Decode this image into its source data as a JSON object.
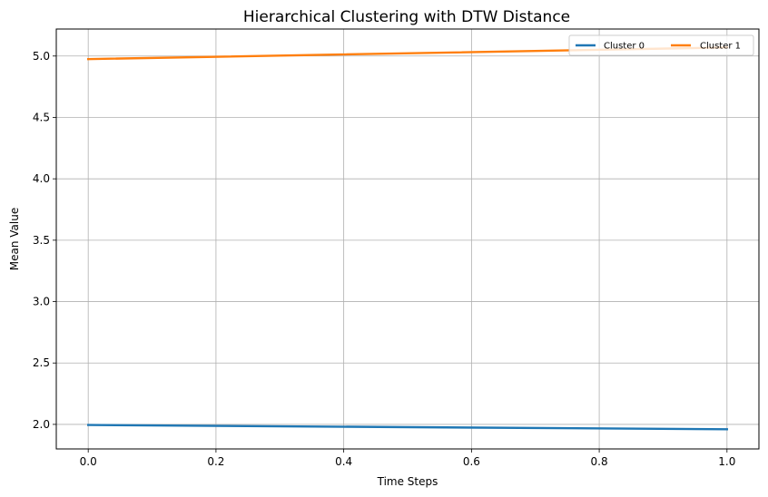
{
  "chart_data": {
    "type": "line",
    "title": "Hierarchical Clustering with DTW Distance",
    "xlabel": "Time Steps",
    "ylabel": "Mean Value",
    "xlim": [
      -0.05,
      1.05
    ],
    "ylim": [
      1.8,
      5.22
    ],
    "x_ticks": [
      0.0,
      0.2,
      0.4,
      0.6,
      0.8,
      1.0
    ],
    "x_tick_labels": [
      "0.0",
      "0.2",
      "0.4",
      "0.6",
      "0.8",
      "1.0"
    ],
    "y_ticks": [
      2.0,
      2.5,
      3.0,
      3.5,
      4.0,
      4.5,
      5.0
    ],
    "y_tick_labels": [
      "2.0",
      "2.5",
      "3.0",
      "3.5",
      "4.0",
      "4.5",
      "5.0"
    ],
    "grid": true,
    "legend_position": "top-right",
    "x": [
      0.0,
      1.0
    ],
    "series": [
      {
        "name": "Cluster 0",
        "color": "#1f77b4",
        "values": [
          1.995,
          1.96
        ]
      },
      {
        "name": "Cluster 1",
        "color": "#ff7f0e",
        "values": [
          4.975,
          5.07
        ]
      }
    ]
  }
}
